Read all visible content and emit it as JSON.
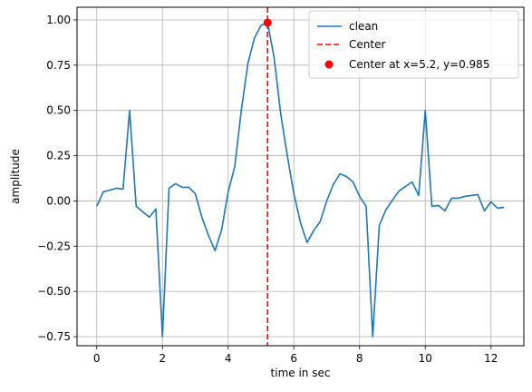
{
  "chart_data": {
    "type": "line",
    "title": "",
    "xlabel": "time in sec",
    "ylabel": "amplitude",
    "xlim": [
      -0.6,
      13.0
    ],
    "ylim": [
      -0.8,
      1.07
    ],
    "xticks": [
      0,
      2,
      4,
      6,
      8,
      10,
      12
    ],
    "xtick_labels": [
      "0",
      "2",
      "4",
      "6",
      "8",
      "10",
      "12"
    ],
    "yticks": [
      -0.75,
      -0.5,
      -0.25,
      0.0,
      0.25,
      0.5,
      0.75,
      1.0
    ],
    "ytick_labels": [
      "−0.75",
      "−0.50",
      "−0.25",
      "0.00",
      "0.25",
      "0.50",
      "0.75",
      "1.00"
    ],
    "grid": true,
    "legend_position": "top-right",
    "series": [
      {
        "name": "clean",
        "type": "line",
        "color": "#1f77b4",
        "x": [
          0.0,
          0.2,
          0.4,
          0.6,
          0.8,
          1.0,
          1.2,
          1.4,
          1.6,
          1.8,
          2.0,
          2.2,
          2.4,
          2.6,
          2.8,
          3.0,
          3.2,
          3.4,
          3.6,
          3.8,
          4.0,
          4.2,
          4.4,
          4.6,
          4.8,
          5.0,
          5.2,
          5.4,
          5.6,
          5.8,
          6.0,
          6.2,
          6.4,
          6.6,
          6.8,
          7.0,
          7.2,
          7.4,
          7.6,
          7.8,
          8.0,
          8.2,
          8.4,
          8.6,
          8.8,
          9.0,
          9.2,
          9.4,
          9.6,
          9.8,
          10.0,
          10.2,
          10.4,
          10.6,
          10.8,
          11.0,
          11.2,
          11.4,
          11.6,
          11.8,
          12.0,
          12.2,
          12.4
        ],
        "y": [
          -0.03,
          0.05,
          0.06,
          0.07,
          0.065,
          0.5,
          -0.03,
          -0.06,
          -0.09,
          -0.045,
          -0.75,
          0.07,
          0.095,
          0.075,
          0.075,
          0.04,
          -0.09,
          -0.19,
          -0.275,
          -0.16,
          0.05,
          0.19,
          0.5,
          0.76,
          0.9,
          0.97,
          0.985,
          0.79,
          0.48,
          0.25,
          0.04,
          -0.12,
          -0.23,
          -0.165,
          -0.115,
          0.0,
          0.09,
          0.15,
          0.135,
          0.105,
          0.025,
          -0.03,
          -0.75,
          -0.135,
          -0.05,
          0.005,
          0.055,
          0.08,
          0.105,
          0.03,
          0.5,
          -0.03,
          -0.025,
          -0.055,
          0.015,
          0.015,
          0.025,
          0.03,
          0.035,
          -0.055,
          -0.005,
          -0.04,
          -0.035
        ]
      },
      {
        "name": "Center",
        "type": "vline",
        "color": "#ff0000",
        "x": 5.2
      },
      {
        "name": "Center at x=5.2, y=0.985",
        "type": "scatter",
        "color": "#ff0000",
        "points": [
          [
            5.2,
            0.985
          ]
        ]
      }
    ]
  }
}
